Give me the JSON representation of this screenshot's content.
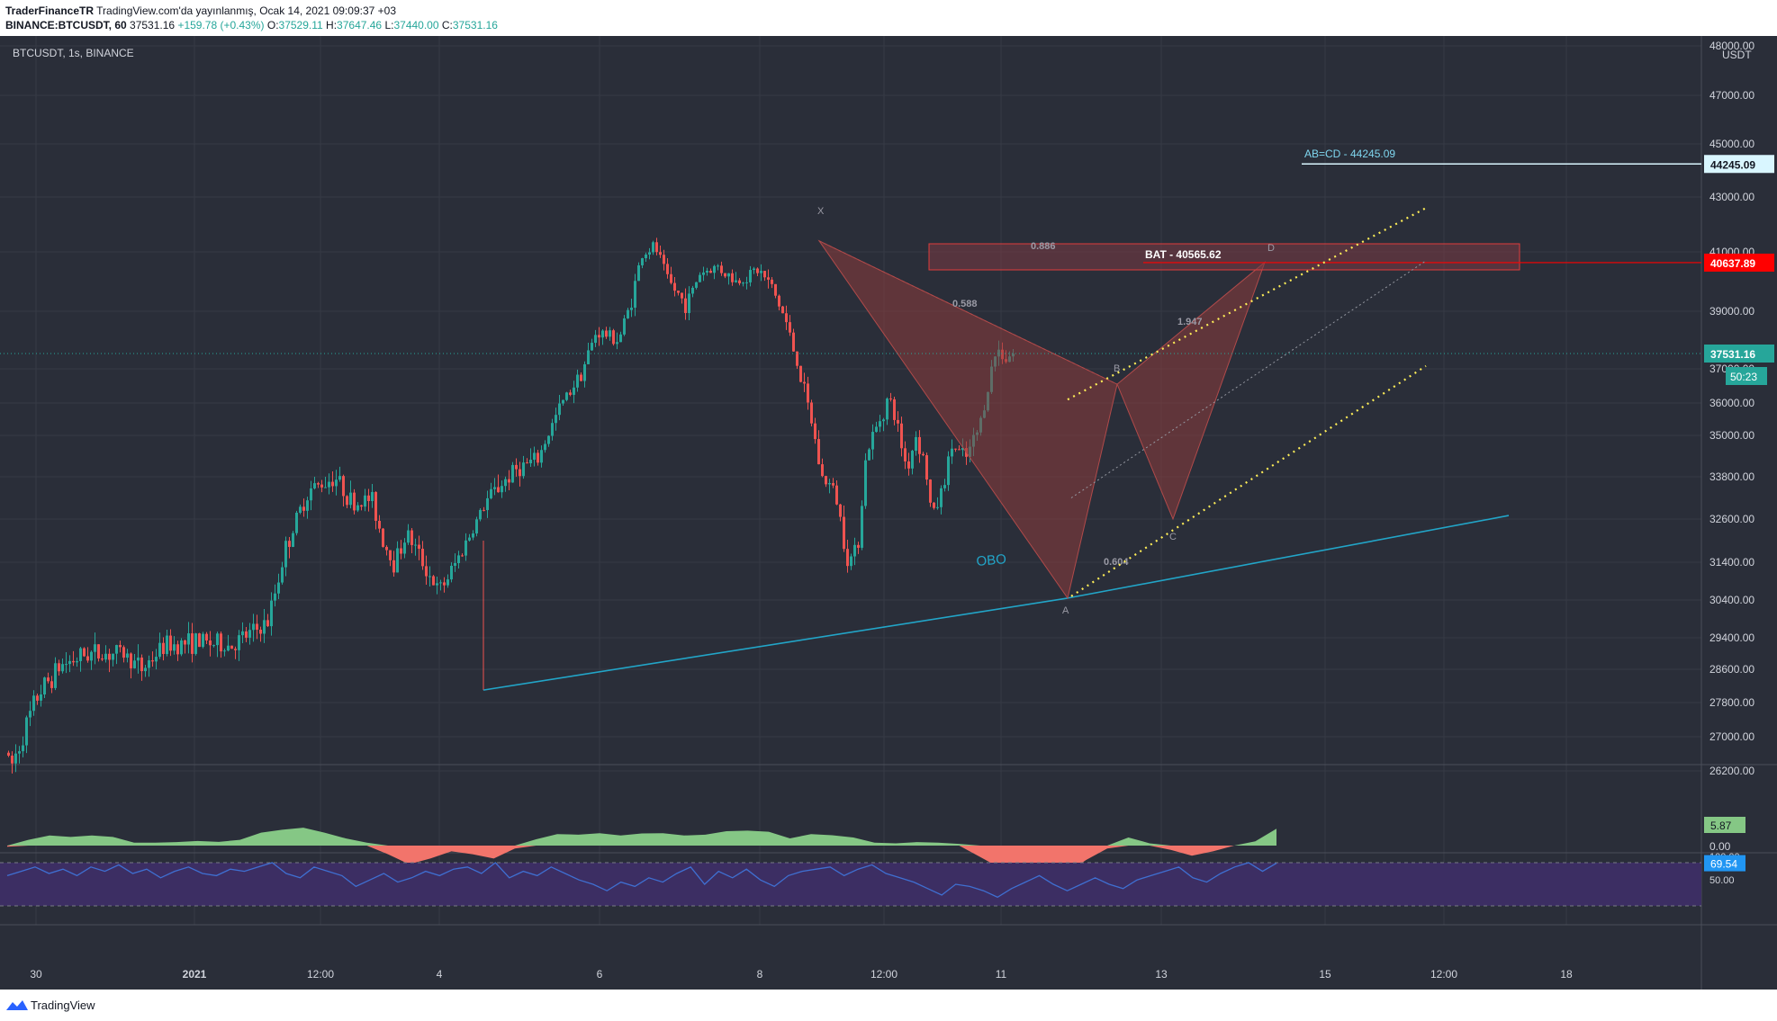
{
  "header": {
    "publisher": "TraderFinanceTR",
    "publish_note": "TradingView.com'da yayınlanmış, Ocak 14, 2021 09:09:37 +03",
    "symbol_interval": "BINANCE:BTCUSDT, 60",
    "last": "37531.16",
    "change": "+159.78 (+0.43%)",
    "o_label": "O:",
    "o": "37529.11",
    "h_label": "H:",
    "h": "37647.46",
    "l_label": "L:",
    "l": "37440.00",
    "c_label": "C:",
    "c": "37531.16"
  },
  "footer": {
    "brand": "TradingView"
  },
  "chart_data": {
    "type": "candlestick",
    "title": "BTCUSDT, 1s, BINANCE",
    "currency": "USDT",
    "y_range": [
      25500,
      48500
    ],
    "price_ticks": [
      "48000.00",
      "47000.00",
      "45000.00",
      "43000.00",
      "41000.00",
      "39000.00",
      "37000.00",
      "36000.00",
      "35000.00",
      "33800.00",
      "32600.00",
      "31400.00",
      "30400.00",
      "29400.00",
      "28600.00",
      "27800.00",
      "27000.00",
      "26200.00"
    ],
    "x_ticks": [
      "30",
      "2021",
      "12:00",
      "4",
      "6",
      "8",
      "12:00",
      "11",
      "13",
      "15",
      "12:00",
      "18"
    ],
    "price_labels": [
      {
        "text": "44245.09",
        "value": 44245.09,
        "color": "#d9f6ff",
        "text_color": "#131722"
      },
      {
        "text": "40637.89",
        "value": 40637.89,
        "color": "#ff0000",
        "text_color": "#ffffff"
      },
      {
        "text": "37531.16",
        "value": 37531.16,
        "color": "#26a69a",
        "text_color": "#ffffff"
      }
    ],
    "countdown": "50:23",
    "candle_key_points": [
      {
        "x": 0,
        "y": 27000
      },
      {
        "x": 15,
        "y": 26300
      },
      {
        "x": 45,
        "y": 28000
      },
      {
        "x": 70,
        "y": 28700
      },
      {
        "x": 100,
        "y": 29000
      },
      {
        "x": 140,
        "y": 29000
      },
      {
        "x": 160,
        "y": 28600
      },
      {
        "x": 185,
        "y": 29200
      },
      {
        "x": 220,
        "y": 29300
      },
      {
        "x": 260,
        "y": 29200
      },
      {
        "x": 300,
        "y": 29800
      },
      {
        "x": 320,
        "y": 31800
      },
      {
        "x": 345,
        "y": 33400
      },
      {
        "x": 375,
        "y": 33800
      },
      {
        "x": 395,
        "y": 33000
      },
      {
        "x": 415,
        "y": 33200
      },
      {
        "x": 428,
        "y": 32000
      },
      {
        "x": 440,
        "y": 31400
      },
      {
        "x": 455,
        "y": 32200
      },
      {
        "x": 470,
        "y": 31500
      },
      {
        "x": 490,
        "y": 30600
      },
      {
        "x": 505,
        "y": 31200
      },
      {
        "x": 525,
        "y": 32200
      },
      {
        "x": 545,
        "y": 33200
      },
      {
        "x": 575,
        "y": 34000
      },
      {
        "x": 600,
        "y": 34300
      },
      {
        "x": 625,
        "y": 35900
      },
      {
        "x": 650,
        "y": 37000
      },
      {
        "x": 665,
        "y": 38300
      },
      {
        "x": 690,
        "y": 38000
      },
      {
        "x": 705,
        "y": 39500
      },
      {
        "x": 715,
        "y": 40900
      },
      {
        "x": 730,
        "y": 41200
      },
      {
        "x": 745,
        "y": 40000
      },
      {
        "x": 765,
        "y": 39200
      },
      {
        "x": 780,
        "y": 40300
      },
      {
        "x": 800,
        "y": 40500
      },
      {
        "x": 820,
        "y": 40000
      },
      {
        "x": 845,
        "y": 40400
      },
      {
        "x": 860,
        "y": 39800
      },
      {
        "x": 875,
        "y": 38700
      },
      {
        "x": 890,
        "y": 37000
      },
      {
        "x": 905,
        "y": 35300
      },
      {
        "x": 915,
        "y": 33800
      },
      {
        "x": 930,
        "y": 33400
      },
      {
        "x": 945,
        "y": 31400
      },
      {
        "x": 955,
        "y": 31800
      },
      {
        "x": 965,
        "y": 34500
      },
      {
        "x": 980,
        "y": 35500
      },
      {
        "x": 990,
        "y": 36200
      },
      {
        "x": 1000,
        "y": 35200
      },
      {
        "x": 1010,
        "y": 34000
      },
      {
        "x": 1020,
        "y": 35000
      },
      {
        "x": 1030,
        "y": 34200
      },
      {
        "x": 1038,
        "y": 32600
      },
      {
        "x": 1050,
        "y": 33500
      },
      {
        "x": 1060,
        "y": 34700
      },
      {
        "x": 1075,
        "y": 34300
      },
      {
        "x": 1090,
        "y": 35200
      },
      {
        "x": 1100,
        "y": 36500
      },
      {
        "x": 1110,
        "y": 37700
      },
      {
        "x": 1120,
        "y": 37400
      },
      {
        "x": 1126,
        "y": 37530
      }
    ],
    "ao_values": [
      -0.4,
      2,
      3.5,
      3,
      3.5,
      3,
      1,
      1,
      1.2,
      1.6,
      1.3,
      2,
      4.5,
      5.5,
      6.2,
      4.5,
      2.5,
      1,
      -3,
      -6.5,
      -4.5,
      -2,
      -3,
      -4.5,
      -1,
      2.2,
      4,
      3.8,
      4.3,
      3.5,
      4.2,
      4.3,
      3.5,
      3.8,
      5,
      5.2,
      4.8,
      2.5,
      4,
      3.6,
      2.8,
      1,
      0.8,
      1.2,
      1,
      0.6,
      -4,
      -8,
      -11,
      -13.5,
      -10,
      -5,
      -1,
      2.8,
      0.8,
      -1.5,
      -3.5,
      -2,
      0,
      1.5,
      5.87
    ],
    "rsi_values": [
      58,
      62,
      66,
      60,
      64,
      58,
      66,
      62,
      68,
      60,
      64,
      56,
      62,
      66,
      60,
      58,
      64,
      62,
      66,
      70,
      60,
      56,
      66,
      62,
      58,
      48,
      54,
      60,
      52,
      56,
      62,
      58,
      64,
      66,
      60,
      70,
      56,
      62,
      58,
      66,
      60,
      54,
      50,
      44,
      52,
      48,
      56,
      52,
      60,
      66,
      50,
      62,
      56,
      64,
      54,
      48,
      58,
      62,
      64,
      66,
      58,
      64,
      68,
      60,
      56,
      52,
      46,
      40,
      50,
      48,
      44,
      38,
      46,
      52,
      58,
      50,
      44,
      50,
      56,
      50,
      46,
      54,
      58,
      62,
      66,
      56,
      52,
      60,
      66,
      70,
      62,
      69.54
    ],
    "rsi_scale": [
      "100.00",
      "50.00"
    ],
    "ao_label": "5.87",
    "ao_zero": "0.00",
    "rsi_label": "69.54",
    "annotations": [
      {
        "text": "X"
      },
      {
        "text": "B"
      },
      {
        "text": "A"
      },
      {
        "text": "C"
      },
      {
        "text": "D"
      },
      {
        "text": "0.886"
      },
      {
        "text": "0.588"
      },
      {
        "text": "1.947"
      },
      {
        "text": "0.604"
      },
      {
        "text": "BAT - 40565.62"
      },
      {
        "text": "AB=CD - 44245.09"
      },
      {
        "text": "OBO"
      }
    ],
    "colors": {
      "background": "#2a2e39",
      "grid": "#363a45",
      "up": "#26a69a",
      "down": "#ef5350",
      "text": "#d1d4dc",
      "ao_up": "#85c785",
      "ao_down": "#f2746b",
      "rsi_line": "#3f6fd1",
      "rsi_band": "#3c2e63",
      "trend": "#22a5c8",
      "channel": "#ffee58",
      "pattern": "#8d3c3c"
    }
  }
}
